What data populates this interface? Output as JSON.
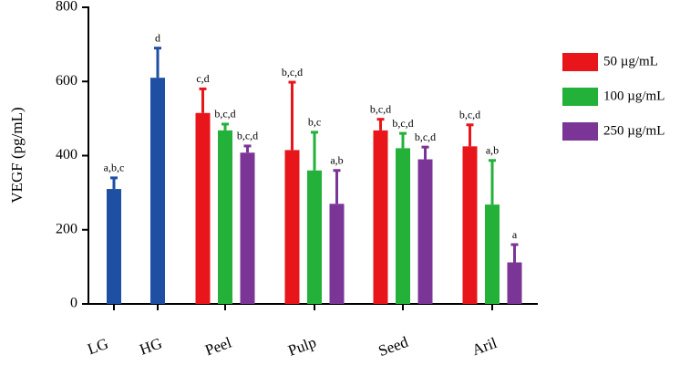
{
  "chart_data": {
    "type": "bar",
    "y_label": "VEGF (pg/mL)",
    "categories": [
      "LG",
      "HG",
      "Peel",
      "Pulp",
      "Seed",
      "Aril"
    ],
    "ylim": [
      0,
      800
    ],
    "yticks": [
      0,
      200,
      400,
      600,
      800
    ],
    "controls": {
      "color": "#1f4fa3",
      "values": [
        310,
        610
      ],
      "errors": [
        30,
        80
      ],
      "annotations": [
        "a,b,c",
        "d"
      ]
    },
    "series": [
      {
        "name": "50 µg/mL",
        "color": "#e8151b",
        "values": [
          null,
          null,
          515,
          415,
          468,
          425
        ],
        "errors": [
          null,
          null,
          65,
          183,
          30,
          58
        ],
        "annotations": [
          null,
          null,
          "c,d",
          "b,c,d",
          "b,c,d",
          "b,c,d"
        ]
      },
      {
        "name": "100 µg/mL",
        "color": "#23b13a",
        "values": [
          null,
          null,
          468,
          360,
          420,
          268
        ],
        "errors": [
          null,
          null,
          17,
          103,
          40,
          119
        ],
        "annotations": [
          null,
          null,
          "b,c,d",
          "b,c",
          "b,c,d",
          "a,b"
        ]
      },
      {
        "name": "250 µg/mL",
        "color": "#7b3596",
        "values": [
          null,
          null,
          408,
          270,
          390,
          112
        ],
        "errors": [
          null,
          null,
          18,
          90,
          33,
          48
        ],
        "annotations": [
          null,
          null,
          "b,c,d",
          "a,b",
          "b,c,d",
          "a"
        ]
      }
    ]
  }
}
